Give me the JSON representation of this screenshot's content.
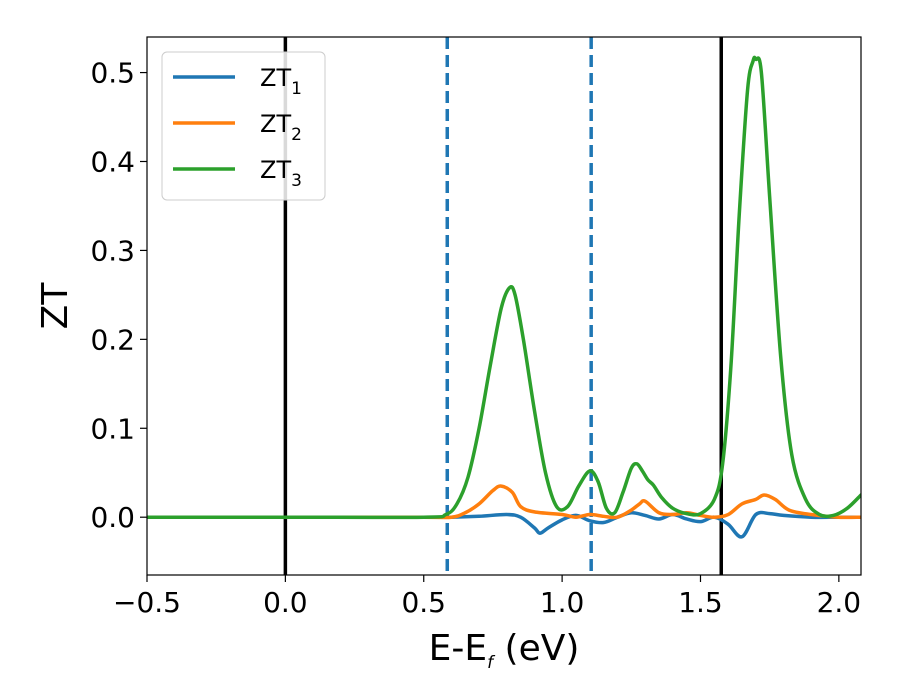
{
  "chart_data": {
    "type": "line",
    "xlabel": "E-E",
    "xlabel_sub": "f",
    "xlabel_unit": " (eV)",
    "ylabel": "ZT",
    "xlim": [
      -0.5,
      2.08
    ],
    "ylim": [
      -0.065,
      0.54
    ],
    "xticks": [
      -0.5,
      0.0,
      0.5,
      1.0,
      1.5,
      2.0
    ],
    "xtick_labels": [
      "−0.5",
      "0.0",
      "0.5",
      "1.0",
      "1.5",
      "2.0"
    ],
    "yticks": [
      0.0,
      0.1,
      0.2,
      0.3,
      0.4,
      0.5
    ],
    "ytick_labels": [
      "0.0",
      "0.1",
      "0.2",
      "0.3",
      "0.4",
      "0.5"
    ],
    "grid": false,
    "legend_position": "top-left",
    "vlines": [
      {
        "x": 0.0,
        "style": "solid",
        "color": "#000000"
      },
      {
        "x": 1.575,
        "style": "solid",
        "color": "#000000"
      },
      {
        "x": 0.585,
        "style": "dashed",
        "color": "#1f77b4"
      },
      {
        "x": 1.105,
        "style": "dashed",
        "color": "#1f77b4"
      }
    ],
    "series": [
      {
        "name": "ZT",
        "sub": "1",
        "color": "#1f77b4",
        "x": [
          -0.5,
          0.0,
          0.5,
          0.6,
          0.7,
          0.8,
          0.85,
          0.9,
          0.92,
          0.95,
          1.0,
          1.05,
          1.1,
          1.15,
          1.2,
          1.25,
          1.3,
          1.35,
          1.4,
          1.45,
          1.5,
          1.55,
          1.6,
          1.65,
          1.7,
          1.75,
          1.8,
          1.9,
          2.0,
          2.08
        ],
        "y": [
          0,
          0,
          0,
          0.0,
          0.001,
          0.003,
          0.0,
          -0.012,
          -0.018,
          -0.012,
          -0.003,
          0.002,
          -0.004,
          -0.006,
          0.0,
          0.005,
          0.002,
          -0.002,
          0.003,
          -0.002,
          -0.005,
          0.0,
          -0.008,
          -0.022,
          0.003,
          0.004,
          0.002,
          0.0,
          0.0,
          0.0
        ]
      },
      {
        "name": "ZT",
        "sub": "2",
        "color": "#ff7f0e",
        "x": [
          -0.5,
          0.0,
          0.5,
          0.6,
          0.65,
          0.7,
          0.75,
          0.78,
          0.82,
          0.85,
          0.9,
          1.0,
          1.05,
          1.1,
          1.15,
          1.2,
          1.25,
          1.28,
          1.3,
          1.35,
          1.4,
          1.45,
          1.5,
          1.55,
          1.6,
          1.65,
          1.7,
          1.73,
          1.77,
          1.82,
          1.9,
          2.0,
          2.08
        ],
        "y": [
          0,
          0,
          0,
          0.0,
          0.005,
          0.015,
          0.03,
          0.035,
          0.028,
          0.012,
          0.006,
          0.003,
          0.0,
          0.003,
          0.001,
          0.0,
          0.008,
          0.015,
          0.018,
          0.005,
          0.003,
          0.005,
          0.002,
          0.0,
          0.003,
          0.015,
          0.02,
          0.025,
          0.02,
          0.008,
          0.003,
          0.0,
          0.0
        ]
      },
      {
        "name": "ZT",
        "sub": "3",
        "color": "#2ca02c",
        "x": [
          -0.5,
          0.0,
          0.5,
          0.58,
          0.62,
          0.66,
          0.7,
          0.74,
          0.78,
          0.81,
          0.83,
          0.86,
          0.9,
          0.94,
          0.98,
          1.02,
          1.06,
          1.1,
          1.13,
          1.16,
          1.19,
          1.22,
          1.25,
          1.27,
          1.29,
          1.31,
          1.33,
          1.36,
          1.4,
          1.45,
          1.5,
          1.55,
          1.58,
          1.61,
          1.64,
          1.67,
          1.69,
          1.7,
          1.72,
          1.75,
          1.79,
          1.83,
          1.88,
          1.93,
          1.98,
          2.03,
          2.08
        ],
        "y": [
          0,
          0,
          0,
          0.003,
          0.015,
          0.045,
          0.1,
          0.17,
          0.235,
          0.258,
          0.25,
          0.2,
          0.12,
          0.05,
          0.012,
          0.012,
          0.035,
          0.052,
          0.04,
          0.01,
          0.005,
          0.028,
          0.055,
          0.06,
          0.052,
          0.042,
          0.036,
          0.022,
          0.01,
          0.004,
          0.004,
          0.02,
          0.06,
          0.17,
          0.34,
          0.48,
          0.513,
          0.515,
          0.5,
          0.36,
          0.18,
          0.07,
          0.02,
          0.003,
          0.002,
          0.01,
          0.025
        ]
      }
    ]
  }
}
